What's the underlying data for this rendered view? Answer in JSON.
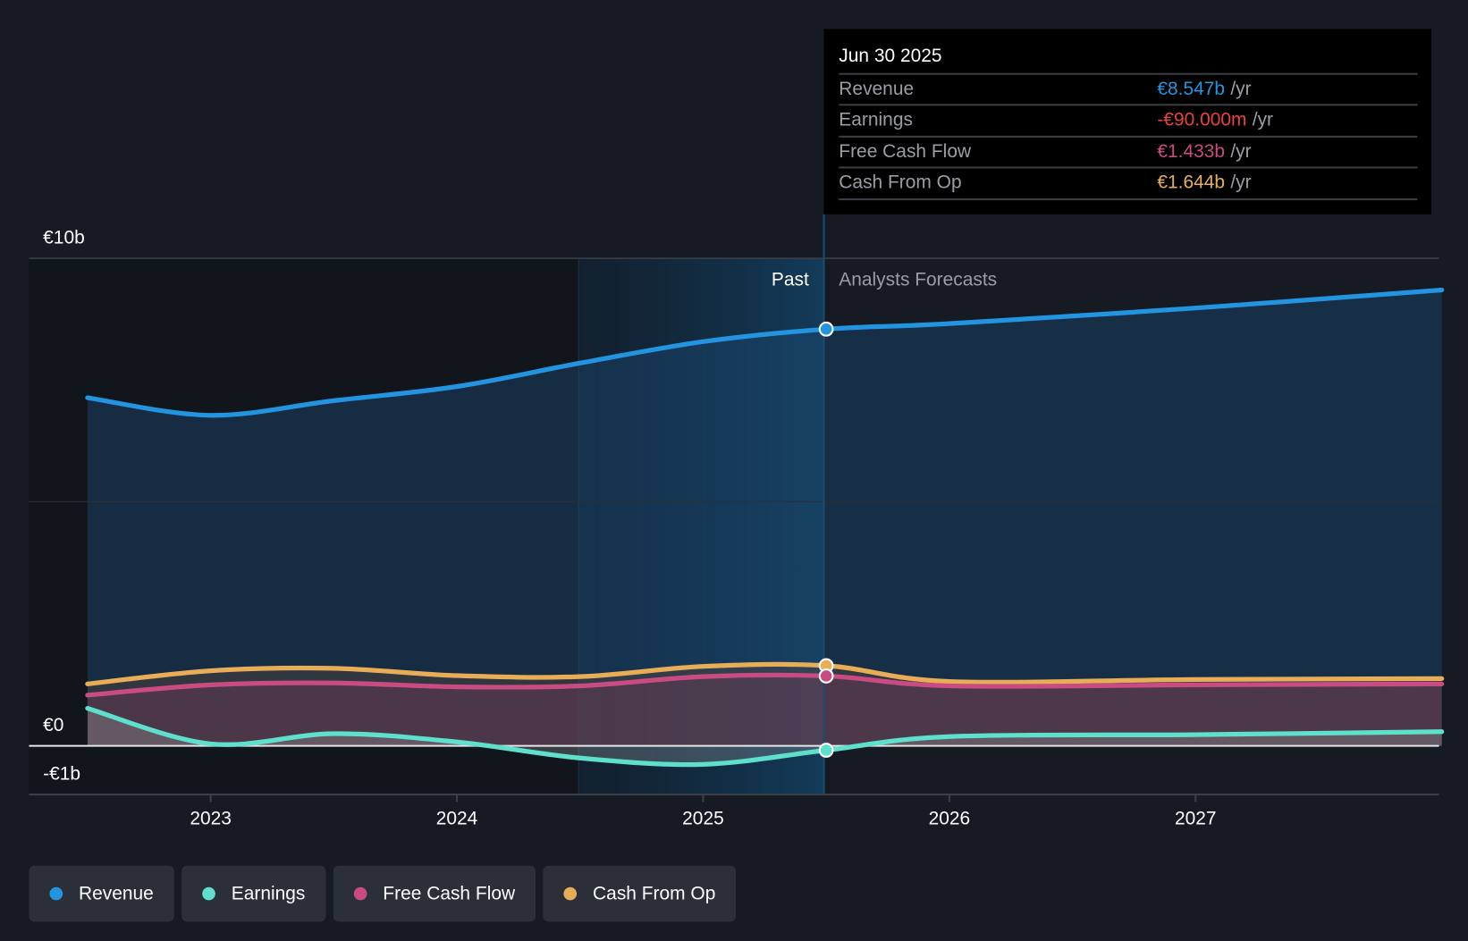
{
  "chart_data": {
    "type": "area",
    "title": "",
    "y_unit": "€b",
    "ylim": [
      -1,
      10
    ],
    "xlim": [
      2022.5,
      2028.0
    ],
    "y_ticks": [
      {
        "value": 10,
        "label": "€10b"
      },
      {
        "value": 0,
        "label": "€0"
      },
      {
        "value": -1,
        "label": "-€1b"
      }
    ],
    "x_ticks": [
      {
        "value": 2023,
        "label": "2023"
      },
      {
        "value": 2024,
        "label": "2024"
      },
      {
        "value": 2025,
        "label": "2025"
      },
      {
        "value": 2026,
        "label": "2026"
      },
      {
        "value": 2027,
        "label": "2027"
      }
    ],
    "x": [
      2022.5,
      2023.0,
      2023.5,
      2024.0,
      2024.5,
      2025.0,
      2025.5,
      2026.0,
      2027.0,
      2028.0
    ],
    "past_end": 2025.5,
    "highlight_start": 2024.5,
    "region_labels": {
      "past": "Past",
      "forecast": "Analysts Forecasts"
    },
    "series": [
      {
        "name": "Revenue",
        "color": "#2394df",
        "values": [
          7.14,
          6.78,
          7.08,
          7.37,
          7.85,
          8.29,
          8.547,
          8.66,
          8.98,
          9.35
        ]
      },
      {
        "name": "Earnings",
        "color": "#5ee0cc",
        "values": [
          0.77,
          0.04,
          0.25,
          0.08,
          -0.25,
          -0.38,
          -0.09,
          0.19,
          0.23,
          0.29
        ]
      },
      {
        "name": "Free Cash Flow",
        "color": "#c84b82",
        "values": [
          1.04,
          1.25,
          1.29,
          1.21,
          1.23,
          1.42,
          1.433,
          1.23,
          1.25,
          1.27
        ]
      },
      {
        "name": "Cash From Op",
        "color": "#e8ad57",
        "values": [
          1.27,
          1.54,
          1.59,
          1.44,
          1.42,
          1.63,
          1.644,
          1.32,
          1.36,
          1.38
        ]
      }
    ],
    "legend_position": "bottom-left"
  },
  "tooltip": {
    "date": "Jun 30 2025",
    "unit": "/yr",
    "rows": [
      {
        "label": "Revenue",
        "value": "€8.547b",
        "color": "#2394df"
      },
      {
        "label": "Earnings",
        "value": "-€90.000m",
        "color": "#e8423f"
      },
      {
        "label": "Free Cash Flow",
        "value": "€1.433b",
        "color": "#c84b82"
      },
      {
        "label": "Cash From Op",
        "value": "€1.644b",
        "color": "#e8ad57"
      }
    ]
  },
  "legend": [
    {
      "label": "Revenue",
      "color": "#2394df"
    },
    {
      "label": "Earnings",
      "color": "#5ee0cc"
    },
    {
      "label": "Free Cash Flow",
      "color": "#c84b82"
    },
    {
      "label": "Cash From Op",
      "color": "#e8ad57"
    }
  ]
}
